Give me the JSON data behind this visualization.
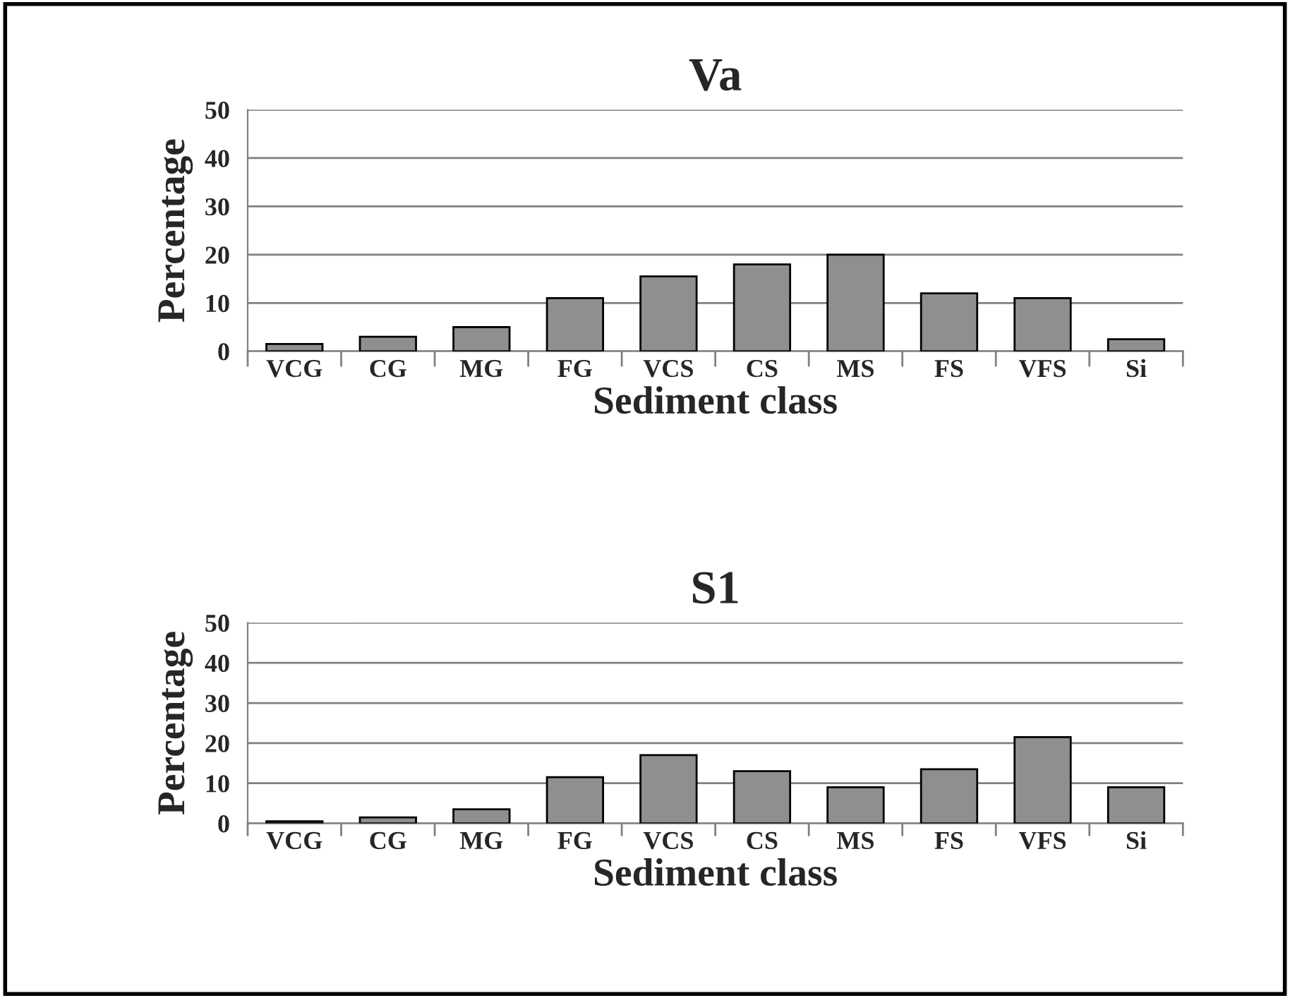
{
  "chart_data": [
    {
      "type": "bar",
      "title": "Va",
      "xlabel": "Sediment class",
      "ylabel": "Percentage",
      "categories": [
        "VCG",
        "CG",
        "MG",
        "FG",
        "VCS",
        "CS",
        "MS",
        "FS",
        "VFS",
        "Si"
      ],
      "values": [
        1.5,
        3,
        5,
        11,
        15.5,
        18,
        20,
        12,
        11,
        2.5
      ],
      "color": "#8f8f8f",
      "ylim": [
        0,
        50
      ],
      "yticks": [
        0,
        10,
        20,
        30,
        40,
        50
      ],
      "grid": "y"
    },
    {
      "type": "bar",
      "title": "S1",
      "xlabel": "Sediment class",
      "ylabel": "Percentage",
      "categories": [
        "VCG",
        "CG",
        "MG",
        "FG",
        "VCS",
        "CS",
        "MS",
        "FS",
        "VFS",
        "Si"
      ],
      "values": [
        0.5,
        1.5,
        3.5,
        11.5,
        17,
        13,
        9,
        13.5,
        21.5,
        9
      ],
      "color": "#8f8f8f",
      "ylim": [
        0,
        50
      ],
      "yticks": [
        0,
        10,
        20,
        30,
        40,
        50
      ],
      "grid": "y"
    }
  ]
}
